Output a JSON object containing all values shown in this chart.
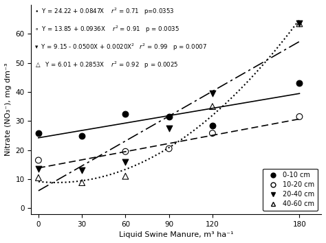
{
  "x_data": [
    0,
    30,
    60,
    90,
    120,
    180
  ],
  "y_0_10": [
    25.8,
    24.8,
    32.5,
    31.5,
    28.5,
    43.0
  ],
  "y_10_20": [
    16.5,
    null,
    19.5,
    20.5,
    25.8,
    31.5
  ],
  "y_20_40": [
    13.5,
    13.0,
    15.8,
    27.5,
    39.5,
    63.5
  ],
  "y_40_60": [
    10.5,
    8.8,
    11.0,
    null,
    35.0,
    63.5
  ],
  "equations": [
    "Y = 24.22 + 0.0847X    r² = 0.71   p=0.0353",
    "Y = 13.85 + 0.0936X    r² = 0.91   p = 0.0035",
    "Y = 9.15 - 0.0500X + 0.0020X²   r² = 0.99   p = 0.0007",
    "Y = 6.01 + 0.2853X    r² = 0.92   p = 0.0025"
  ],
  "legend_labels": [
    "0-10 cm",
    "10-20 cm",
    "20-40 cm",
    "40-60 cm"
  ],
  "xlabel": "Liquid Swine Manure, m³ ha⁻¹",
  "ylabel": "Nitrate (NO₃⁻), mg dm⁻³",
  "xlim": [
    -5,
    195
  ],
  "ylim": [
    -2,
    70
  ],
  "yticks": [
    0,
    10,
    20,
    30,
    40,
    50,
    60
  ],
  "xticks": [
    0,
    30,
    60,
    90,
    120,
    180
  ],
  "fit_color": "black",
  "bg_color": "#ffffff"
}
